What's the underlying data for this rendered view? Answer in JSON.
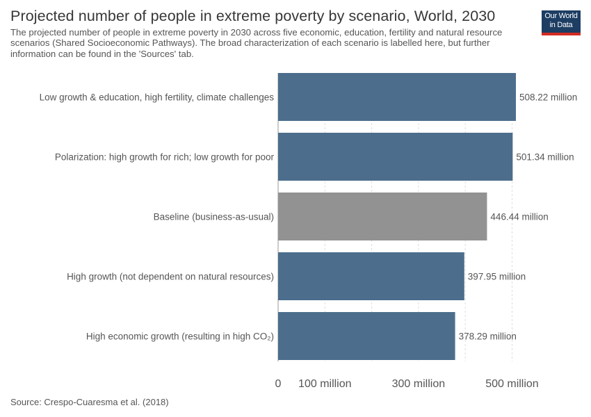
{
  "header": {
    "title": "Projected number of people in extreme poverty by scenario, World, 2030",
    "subtitle": "The projected number of people in extreme poverty in 2030 across five economic, education, fertility and natural resource scenarios (Shared Socioeconomic Pathways). The broad characterization of each scenario is labelled here, but further information can be found in the 'Sources' tab."
  },
  "logo": {
    "line1": "Our World",
    "line2": "in Data"
  },
  "footer": {
    "source": "Source: Crespo-Cuaresma et al. (2018)"
  },
  "colors": {
    "bar": "#4c6e8c",
    "highlight": "#929292",
    "grid": "#dddddd",
    "axis": "#999999"
  },
  "chart_data": {
    "type": "bar",
    "orientation": "horizontal",
    "categories": [
      "Low growth & education, high fertility, climate challenges",
      "Polarization: high growth for rich; low growth for poor",
      "Baseline (business-as-usual)",
      "High growth (not dependent on natural resources)",
      "High economic growth (resulting in high CO₂)"
    ],
    "values": [
      508.22,
      501.34,
      446.44,
      397.95,
      378.29
    ],
    "value_labels": [
      "508.22 million",
      "501.34 million",
      "446.44 million",
      "397.95 million",
      "378.29 million"
    ],
    "highlighted": [
      false,
      false,
      true,
      false,
      false
    ],
    "unit": "million",
    "xlim": [
      0,
      508.22
    ],
    "grid_values": [
      0,
      100,
      200,
      300,
      400,
      500
    ],
    "ticks": [
      {
        "value": 0,
        "label": "0"
      },
      {
        "value": 100,
        "label": "100 million"
      },
      {
        "value": 300,
        "label": "300 million"
      },
      {
        "value": 500,
        "label": "500 million"
      }
    ],
    "grid": true
  }
}
